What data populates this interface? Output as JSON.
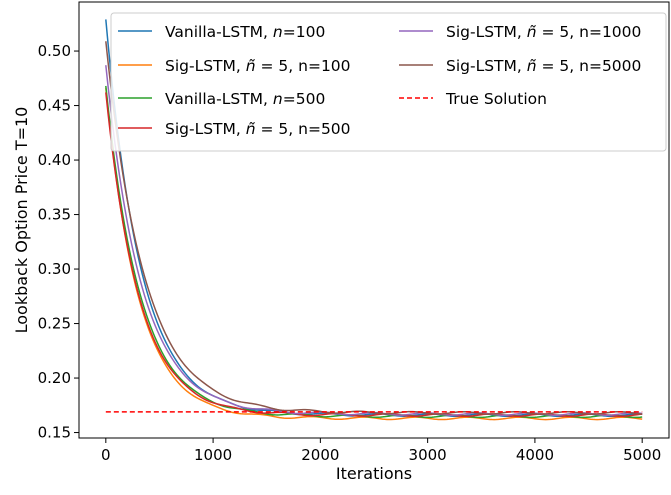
{
  "chart_data": {
    "type": "line",
    "xlabel": "Iterations",
    "ylabel": "Lookback Option Price T=10",
    "xlim": [
      -250,
      5250
    ],
    "ylim": [
      0.145,
      0.545
    ],
    "xticks": [
      0,
      1000,
      2000,
      3000,
      4000,
      5000
    ],
    "xtick_labels": [
      "0",
      "1000",
      "2000",
      "3000",
      "4000",
      "5000"
    ],
    "yticks": [
      0.15,
      0.2,
      0.25,
      0.3,
      0.35,
      0.4,
      0.45,
      0.5
    ],
    "ytick_labels": [
      "0.15",
      "0.20",
      "0.25",
      "0.30",
      "0.35",
      "0.40",
      "0.45",
      "0.50"
    ],
    "grid": false,
    "legend_placement": "top-right",
    "true_solution": 0.169,
    "series": [
      {
        "name": "Vanilla-LSTM, n=100",
        "legend": [
          "Vanilla-LSTM, ",
          "n",
          "=100"
        ],
        "color": "#1f77b4",
        "start": 0.529,
        "final": 0.166,
        "tau": 330
      },
      {
        "name": "Sig-LSTM, ñ = 5, n=100",
        "legend": [
          "Sig-LSTM, ",
          "ñ",
          " = 5, n=100"
        ],
        "color": "#ff7f0e",
        "start": 0.466,
        "final": 0.163,
        "tau": 305
      },
      {
        "name": "Vanilla-LSTM, n=500",
        "legend": [
          "Vanilla-LSTM, ",
          "n",
          "=500"
        ],
        "color": "#2ca02c",
        "start": 0.468,
        "final": 0.165,
        "tau": 320
      },
      {
        "name": "Sig-LSTM, ñ = 5, n=500",
        "legend": [
          "Sig-LSTM, ",
          "ñ",
          " = 5, n=500"
        ],
        "color": "#d62728",
        "start": 0.462,
        "final": 0.166,
        "tau": 310
      },
      {
        "name": "Sig-LSTM, ñ = 5, n=1000",
        "legend": [
          "Sig-LSTM, ",
          "ñ",
          " = 5, n=1000"
        ],
        "color": "#9467bd",
        "start": 0.487,
        "final": 0.167,
        "tau": 335
      },
      {
        "name": "Sig-LSTM, ñ = 5, n=5000",
        "legend": [
          "Sig-LSTM, ",
          "ñ",
          " = 5, n=5000"
        ],
        "color": "#8c564b",
        "start": 0.509,
        "final": 0.168,
        "tau": 360
      }
    ],
    "true_solution_label": "True Solution",
    "true_solution_color": "#ff0000"
  }
}
